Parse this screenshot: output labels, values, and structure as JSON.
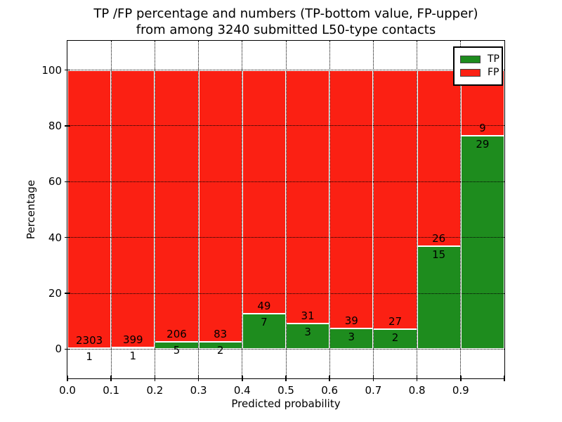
{
  "figure": {
    "title_line1": "TP /FP percentage and numbers (TP-bottom value, FP-upper)",
    "title_line2": "from among 3240 submitted L50-type contacts"
  },
  "chart_data": {
    "type": "bar",
    "variant": "stacked-percentage-histogram",
    "title": "TP /FP percentage and numbers (TP-bottom value, FP-upper) from among 3240 submitted L50-type contacts",
    "xlabel": "Predicted probability",
    "ylabel": "Percentage",
    "total_submitted": 3240,
    "bin_edges": [
      0.0,
      0.1,
      0.2,
      0.3,
      0.4,
      0.5,
      0.6,
      0.7,
      0.8,
      0.9,
      1.0
    ],
    "x_tick_labels": [
      "0.0",
      "0.1",
      "0.2",
      "0.3",
      "0.4",
      "0.5",
      "0.6",
      "0.7",
      "0.8",
      "0.9"
    ],
    "y_tick_values": [
      0,
      20,
      40,
      60,
      80,
      100
    ],
    "y_tick_labels": [
      "0",
      "20",
      "40",
      "60",
      "80",
      "100"
    ],
    "xlim": [
      0.0,
      1.0
    ],
    "ylim": [
      -10.5,
      110.5
    ],
    "grid": "dotted-black-both-axes",
    "bar_edge_color": "#ffffff",
    "series": [
      {
        "name": "TP",
        "color": "#1e8c1e",
        "counts": [
          1,
          1,
          5,
          2,
          7,
          3,
          3,
          2,
          15,
          29
        ]
      },
      {
        "name": "FP",
        "color": "#fb2013",
        "counts": [
          2303,
          399,
          206,
          83,
          49,
          31,
          39,
          27,
          26,
          9
        ]
      }
    ],
    "annotation_rule": "FP count printed just above the TP/FP boundary, TP count just below it",
    "legend": {
      "position": "upper-right",
      "items": [
        {
          "label": "TP",
          "color": "#1e8c1e"
        },
        {
          "label": "FP",
          "color": "#fb2013"
        }
      ]
    }
  }
}
